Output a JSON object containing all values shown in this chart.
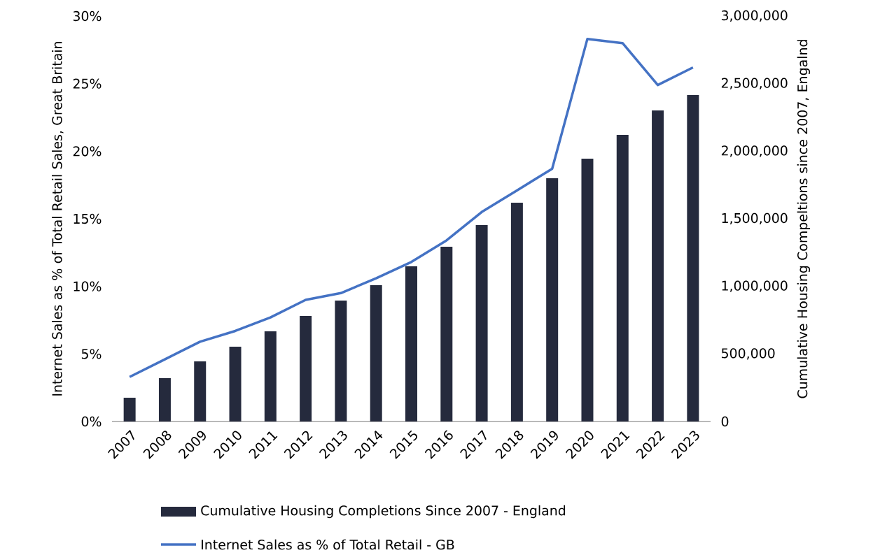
{
  "chart_data": {
    "type": "bar",
    "categories": [
      "2007",
      "2008",
      "2009",
      "2010",
      "2011",
      "2012",
      "2013",
      "2014",
      "2015",
      "2016",
      "2017",
      "2018",
      "2019",
      "2020",
      "2021",
      "2022",
      "2023"
    ],
    "series": [
      {
        "name": "Cumulative Housing Completions Since 2007 - England",
        "color": "#252a3d",
        "axis": "y2",
        "values": [
          176000,
          321000,
          445000,
          553000,
          667000,
          781000,
          895000,
          1009000,
          1148000,
          1293000,
          1453000,
          1619000,
          1800000,
          1945000,
          2121000,
          2302000,
          2416000
        ]
      },
      {
        "name": "Internet Sales as % of Total Retail - GB",
        "type": "line",
        "color": "#4472c4",
        "axis": "y",
        "values": [
          3.3,
          4.6,
          5.9,
          6.7,
          7.7,
          9.0,
          9.5,
          10.6,
          11.8,
          13.4,
          15.5,
          17.1,
          18.7,
          28.3,
          28.0,
          24.9,
          26.2
        ]
      }
    ],
    "ylabel": "Internet Sales as % of Total Retail Sales, Great Britain",
    "y2label": "Cumulative Housing Compeltions since 2007, Engalnd",
    "ylim": [
      0,
      30
    ],
    "yticks": [
      {
        "value": 0,
        "label": "0%"
      },
      {
        "value": 5,
        "label": "5%"
      },
      {
        "value": 10,
        "label": "10%"
      },
      {
        "value": 15,
        "label": "15%"
      },
      {
        "value": 20,
        "label": "20%"
      },
      {
        "value": 25,
        "label": "25%"
      },
      {
        "value": 30,
        "label": "30%"
      }
    ],
    "y2lim": [
      0,
      3000000
    ],
    "y2ticks": [
      0,
      {
        "value": 500000,
        "label": "500,000"
      },
      {
        "value": 1000000,
        "label": "1,000,000"
      },
      {
        "value": 1500000,
        "label": "1,500,000"
      },
      {
        "value": 2000000,
        "label": "2,000,000"
      },
      {
        "value": 2500000,
        "label": "2,500,000"
      },
      {
        "value": 3000000,
        "label": "3,000,000"
      }
    ],
    "legend": "bottom"
  }
}
